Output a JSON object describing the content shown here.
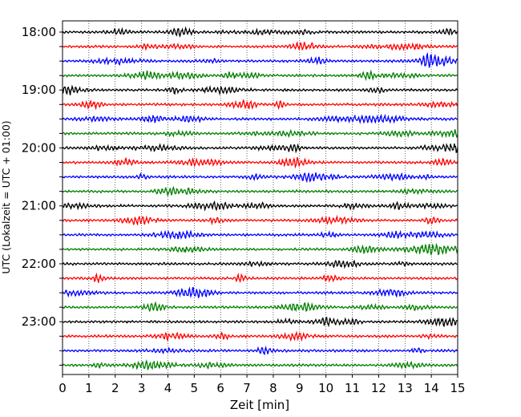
{
  "chart_data": {
    "type": "line",
    "title": "",
    "xlabel": "Zeit  [min]",
    "ylabel": "UTC (Lokalzeit = UTC + 01:00)",
    "xlim": [
      0,
      15
    ],
    "x_ticks": [
      "0",
      "1",
      "2",
      "3",
      "4",
      "5",
      "6",
      "7",
      "8",
      "9",
      "10",
      "11",
      "12",
      "13",
      "14",
      "15"
    ],
    "y_tick_labels": [
      "18:00",
      "19:00",
      "20:00",
      "21:00",
      "22:00",
      "23:00"
    ],
    "trace_interval_minutes": 15,
    "trace_count": 24,
    "trace_colors": [
      "#000000",
      "#ff0000",
      "#0000ff",
      "#007f00"
    ],
    "grid": "vertical dotted at each minute",
    "legend": "none"
  }
}
